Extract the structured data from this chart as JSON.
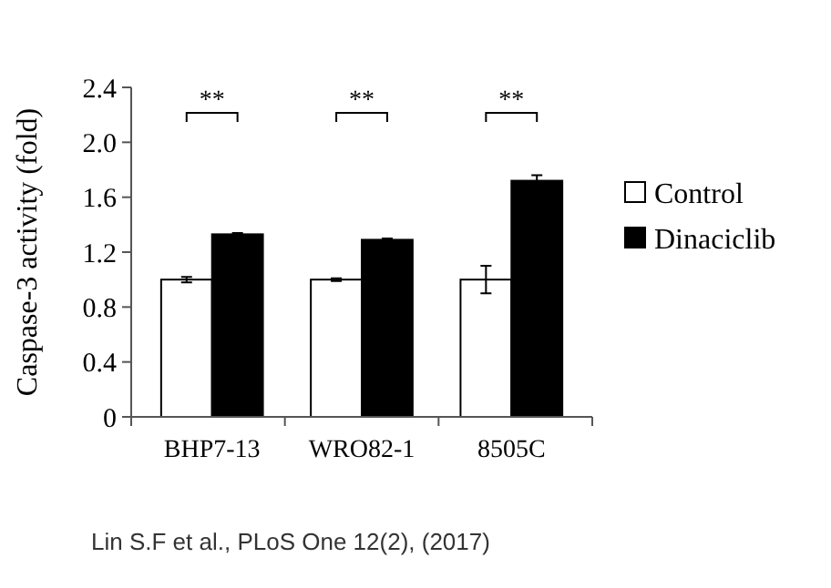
{
  "chart_data": {
    "type": "bar",
    "ylabel": "Caspase-3 activity (fold)",
    "categories": [
      "BHP7-13",
      "WRO82-1",
      "8505C"
    ],
    "series": [
      {
        "name": "Control",
        "color": "#ffffff",
        "values": [
          1.0,
          1.0,
          1.0
        ],
        "errors": [
          0.02,
          0.01,
          0.1
        ]
      },
      {
        "name": "Dinaciclib",
        "color": "#000000",
        "values": [
          1.33,
          1.29,
          1.72
        ],
        "errors": [
          0.01,
          0.01,
          0.04
        ]
      }
    ],
    "ylim": [
      0,
      2.4
    ],
    "yticks": [
      {
        "value": 0,
        "label": "0"
      },
      {
        "value": 0.4,
        "label": "0.4"
      },
      {
        "value": 0.8,
        "label": "0.8"
      },
      {
        "value": 1.2,
        "label": "1.2"
      },
      {
        "value": 1.6,
        "label": "1.6"
      },
      {
        "value": 2.0,
        "label": "2.0"
      },
      {
        "value": 2.4,
        "label": "2.4"
      }
    ],
    "grid": false,
    "legend": "right",
    "annotations": [
      "**",
      "**",
      "**",
      "Lin S.F et al., PLoS One 12(2), (2017)"
    ]
  }
}
